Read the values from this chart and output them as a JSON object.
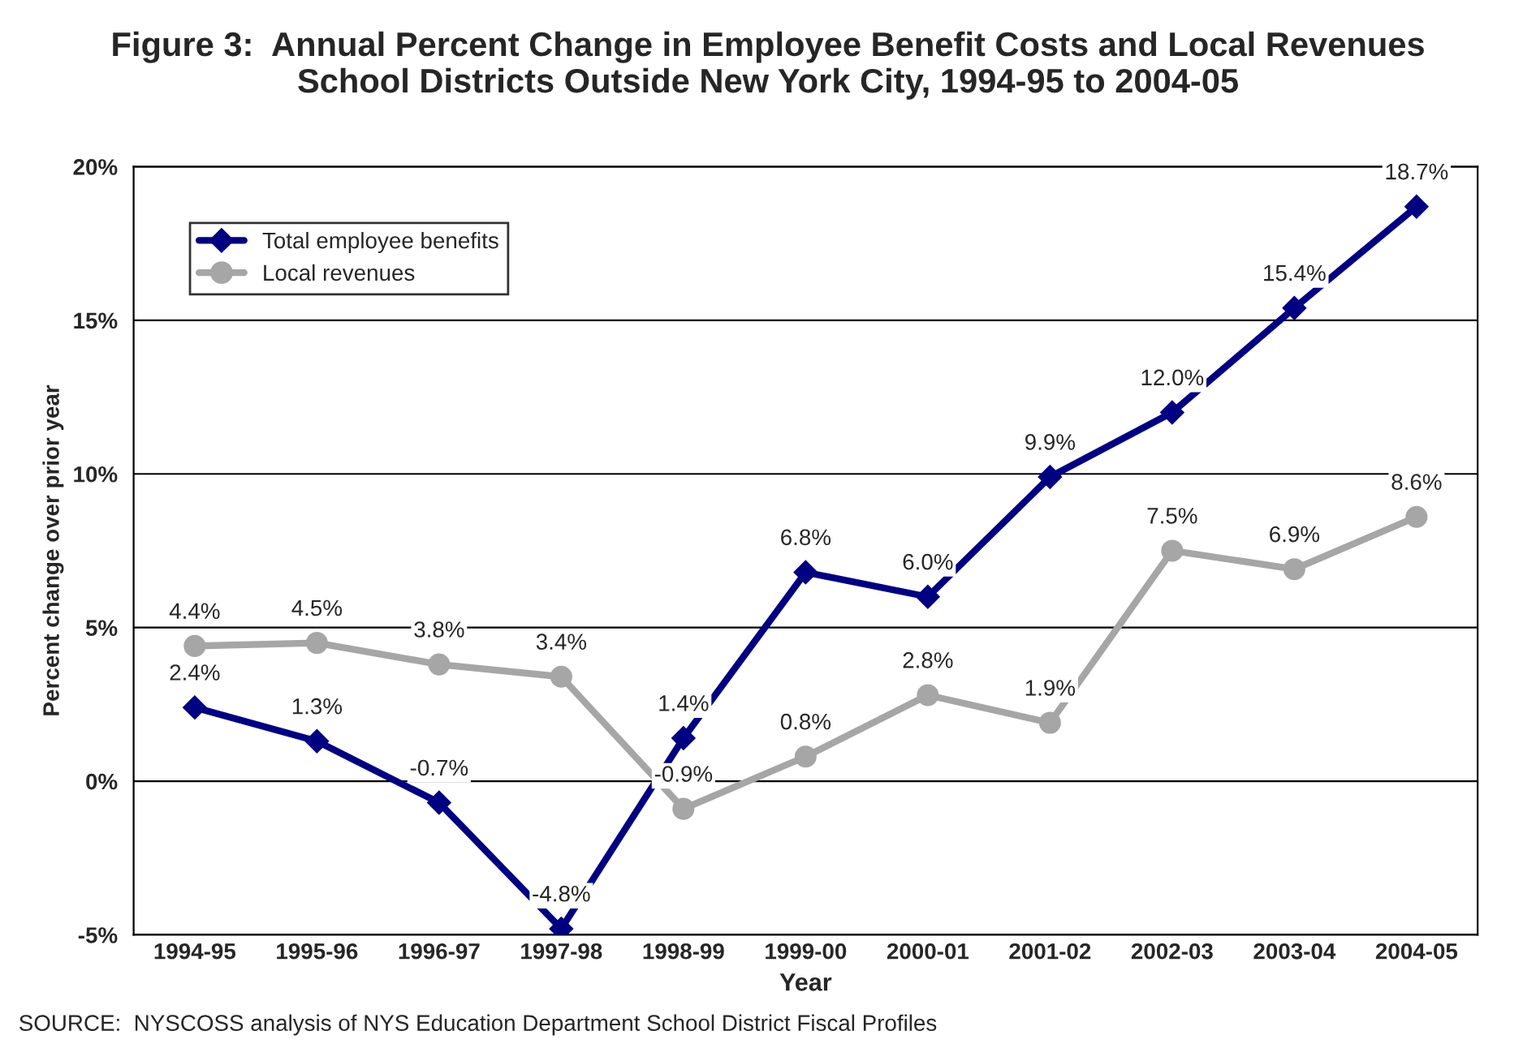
{
  "chart_data": {
    "type": "line",
    "title": "Figure 3:  Annual Percent Change in Employee Benefit Costs and Local Revenues\nSchool Districts Outside New York City, 1994-95 to 2004-05",
    "xlabel": "Year",
    "ylabel": "Percent change over prior year",
    "categories": [
      "1994-95",
      "1995-96",
      "1996-97",
      "1997-98",
      "1998-99",
      "1999-00",
      "2000-01",
      "2001-02",
      "2002-03",
      "2003-04",
      "2004-05"
    ],
    "series": [
      {
        "name": "Total employee benefits",
        "color": "#000080",
        "marker": "diamond",
        "values": [
          2.4,
          1.3,
          -0.7,
          -4.8,
          1.4,
          6.8,
          6.0,
          9.9,
          12.0,
          15.4,
          18.7
        ],
        "value_labels": [
          "2.4%",
          "1.3%",
          "-0.7%",
          "-4.8%",
          "1.4%",
          "6.8%",
          "6.0%",
          "9.9%",
          "12.0%",
          "15.4%",
          "18.7%"
        ]
      },
      {
        "name": "Local revenues",
        "color": "#a6a6a6",
        "marker": "circle",
        "values": [
          4.4,
          4.5,
          3.8,
          3.4,
          -0.9,
          0.8,
          2.8,
          1.9,
          7.5,
          6.9,
          8.6
        ],
        "value_labels": [
          "4.4%",
          "4.5%",
          "3.8%",
          "3.4%",
          "-0.9%",
          "0.8%",
          "2.8%",
          "1.9%",
          "7.5%",
          "6.9%",
          "8.6%"
        ]
      }
    ],
    "ylim": [
      -5,
      20
    ],
    "yticks": [
      {
        "value": -5,
        "label": "-5%"
      },
      {
        "value": 0,
        "label": "0%"
      },
      {
        "value": 5,
        "label": "5%"
      },
      {
        "value": 10,
        "label": "10%"
      },
      {
        "value": 15,
        "label": "15%"
      },
      {
        "value": 20,
        "label": "20%"
      }
    ],
    "grid": "y",
    "legend": "top left",
    "line_style": "solid",
    "annotations": [
      "SOURCE:  NYSCOSS analysis of NYS Education Department School District Fiscal Profiles"
    ]
  }
}
